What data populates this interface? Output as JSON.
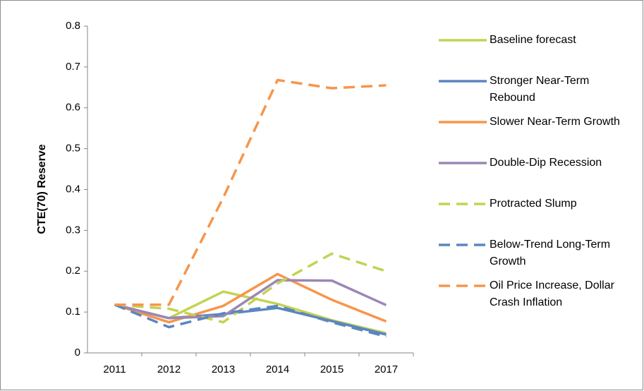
{
  "chart_data": {
    "type": "line",
    "y_label": "CTE(70) Reserve",
    "categories": [
      "2011",
      "2012",
      "2013",
      "2014",
      "2015",
      "2017"
    ],
    "ylim": [
      0,
      0.8
    ],
    "yticks": [
      0,
      0.1,
      0.2,
      0.3,
      0.4,
      0.5,
      0.6,
      0.7,
      0.8
    ],
    "legend": "right",
    "series": [
      {
        "name": "Baseline forecast",
        "color": "#c3d352",
        "dashed": false,
        "values": [
          0.118,
          0.085,
          0.15,
          0.12,
          0.08,
          0.048
        ]
      },
      {
        "name": "Stronger Near-Term Rebound",
        "color": "#5b86bf",
        "dashed": false,
        "values": [
          0.118,
          0.085,
          0.095,
          0.11,
          0.078,
          0.045
        ]
      },
      {
        "name": "Slower Near-Term Growth",
        "color": "#f7954b",
        "dashed": false,
        "values": [
          0.118,
          0.075,
          0.115,
          0.193,
          0.13,
          0.077
        ]
      },
      {
        "name": "Double-Dip Recession",
        "color": "#9b87b5",
        "dashed": false,
        "values": [
          0.118,
          0.085,
          0.09,
          0.178,
          0.177,
          0.117
        ]
      },
      {
        "name": "Protracted Slump",
        "color": "#c3d352",
        "dashed": true,
        "values": [
          0.118,
          0.108,
          0.075,
          0.17,
          0.243,
          0.2
        ]
      },
      {
        "name": "Below-Trend Long-Term Growth",
        "color": "#5b86bf",
        "dashed": true,
        "values": [
          0.118,
          0.063,
          0.097,
          0.115,
          0.075,
          0.04
        ]
      },
      {
        "name": "Oil Price Increase, Dollar Crash Inflation",
        "color": "#f7954b",
        "dashed": true,
        "values": [
          0.118,
          0.118,
          0.38,
          0.668,
          0.648,
          0.655
        ]
      }
    ]
  }
}
